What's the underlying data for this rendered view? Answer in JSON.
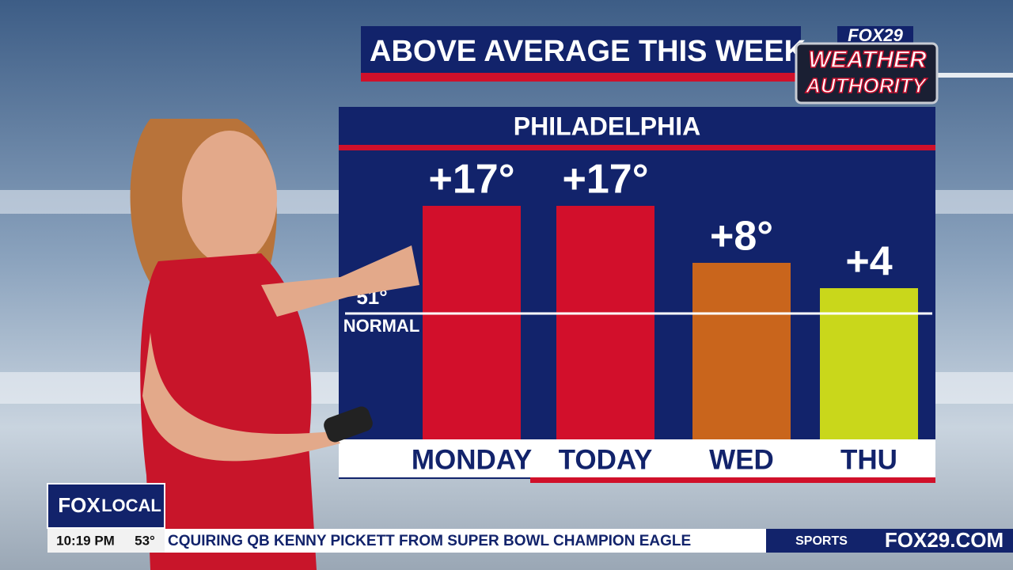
{
  "header": {
    "headline": "ABOVE AVERAGE THIS WEEK",
    "brand": "FOX29",
    "logo_top": "WEATHER",
    "logo_bottom": "AUTHORITY"
  },
  "chart_data": {
    "type": "bar",
    "title": "PHILADELPHIA",
    "categories": [
      "MONDAY",
      "TODAY",
      "WED",
      "THU"
    ],
    "values": [
      17,
      17,
      8,
      4
    ],
    "value_labels": [
      "+17°",
      "+17°",
      "+8°",
      "+4"
    ],
    "colors": [
      "#d20f2b",
      "#d20f2b",
      "#c9651c",
      "#c9d71b"
    ],
    "baseline_value": "51°",
    "baseline_label": "NORMAL"
  },
  "ticker": {
    "channel": "FOX",
    "channel_sub": "LOCAL",
    "time": "10:19 PM",
    "temp": "53°",
    "text": "CQUIRING  QB  KENNY  PICKETT  FROM  SUPER  BOWL  CHAMPION  EAGLE",
    "section": "SPORTS",
    "site": "FOX29.COM"
  }
}
